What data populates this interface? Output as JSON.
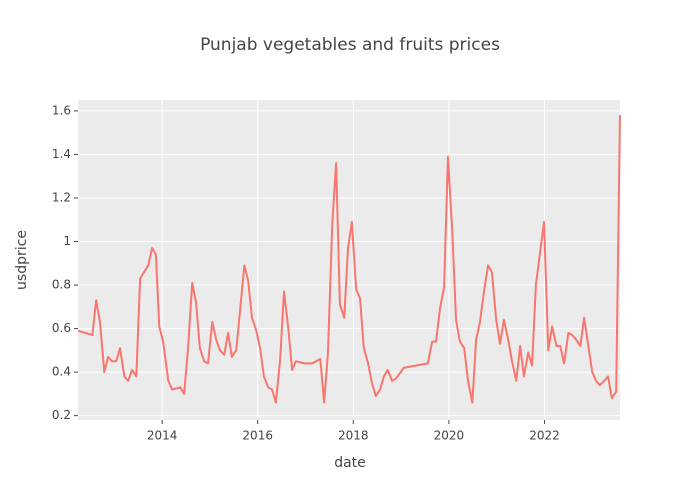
{
  "chart_data": {
    "type": "line",
    "title": "Punjab vegetables and fruits prices",
    "x_label": "date",
    "y_label": "usdprice",
    "color": "#f8766d",
    "grid": true,
    "x": [
      2012.24,
      2012.54,
      2012.62,
      2012.7,
      2012.79,
      2012.87,
      2012.95,
      2013.04,
      2013.12,
      2013.21,
      2013.29,
      2013.37,
      2013.46,
      2013.54,
      2013.71,
      2013.79,
      2013.87,
      2013.94,
      2014.02,
      2014.13,
      2014.21,
      2014.38,
      2014.46,
      2014.54,
      2014.63,
      2014.71,
      2014.79,
      2014.88,
      2014.96,
      2015.05,
      2015.13,
      2015.21,
      2015.3,
      2015.38,
      2015.46,
      2015.55,
      2015.63,
      2015.72,
      2015.8,
      2015.88,
      2015.97,
      2016.05,
      2016.13,
      2016.22,
      2016.3,
      2016.38,
      2016.47,
      2016.55,
      2016.64,
      2016.72,
      2016.8,
      2016.97,
      2017.14,
      2017.31,
      2017.39,
      2017.47,
      2017.56,
      2017.64,
      2017.72,
      2017.81,
      2017.89,
      2017.97,
      2018.06,
      2018.14,
      2018.22,
      2018.31,
      2018.39,
      2018.47,
      2018.56,
      2018.64,
      2018.72,
      2018.81,
      2018.89,
      2019.06,
      2019.56,
      2019.65,
      2019.73,
      2019.82,
      2019.9,
      2019.98,
      2020.07,
      2020.15,
      2020.23,
      2020.32,
      2020.4,
      2020.49,
      2020.57,
      2020.65,
      2020.74,
      2020.82,
      2020.9,
      2020.99,
      2021.07,
      2021.15,
      2021.24,
      2021.32,
      2021.41,
      2021.49,
      2021.57,
      2021.66,
      2021.74,
      2021.82,
      2021.99,
      2022.08,
      2022.16,
      2022.25,
      2022.33,
      2022.41,
      2022.5,
      2022.58,
      2022.66,
      2022.75,
      2022.83,
      2022.91,
      2023.0,
      2023.08,
      2023.16,
      2023.25,
      2023.33,
      2023.41,
      2023.5,
      2023.58
    ],
    "values": [
      0.59,
      0.57,
      0.73,
      0.63,
      0.4,
      0.47,
      0.45,
      0.45,
      0.51,
      0.38,
      0.36,
      0.41,
      0.38,
      0.83,
      0.89,
      0.97,
      0.94,
      0.61,
      0.54,
      0.36,
      0.32,
      0.33,
      0.3,
      0.5,
      0.81,
      0.72,
      0.51,
      0.45,
      0.44,
      0.63,
      0.55,
      0.5,
      0.48,
      0.58,
      0.47,
      0.5,
      0.68,
      0.89,
      0.82,
      0.65,
      0.59,
      0.51,
      0.38,
      0.33,
      0.32,
      0.26,
      0.46,
      0.77,
      0.6,
      0.41,
      0.45,
      0.44,
      0.44,
      0.46,
      0.26,
      0.49,
      1.08,
      1.36,
      0.71,
      0.65,
      0.97,
      1.09,
      0.78,
      0.74,
      0.51,
      0.44,
      0.35,
      0.29,
      0.32,
      0.38,
      0.41,
      0.36,
      0.37,
      0.42,
      0.44,
      0.54,
      0.54,
      0.7,
      0.79,
      1.39,
      1.05,
      0.64,
      0.54,
      0.51,
      0.36,
      0.26,
      0.55,
      0.63,
      0.78,
      0.89,
      0.86,
      0.64,
      0.53,
      0.64,
      0.55,
      0.45,
      0.36,
      0.52,
      0.38,
      0.49,
      0.43,
      0.8,
      1.09,
      0.5,
      0.61,
      0.52,
      0.52,
      0.44,
      0.58,
      0.57,
      0.55,
      0.52,
      0.65,
      0.53,
      0.4,
      0.36,
      0.34,
      0.36,
      0.38,
      0.28,
      0.31,
      1.58
    ],
    "xlim": [
      2012.24,
      2023.58
    ],
    "xticks": [
      2014,
      2016,
      2018,
      2020,
      2022
    ],
    "ylim": [
      0.18,
      1.65
    ],
    "yticks": [
      0.2,
      0.4,
      0.6,
      0.8,
      1,
      1.2,
      1.4,
      1.6
    ]
  }
}
